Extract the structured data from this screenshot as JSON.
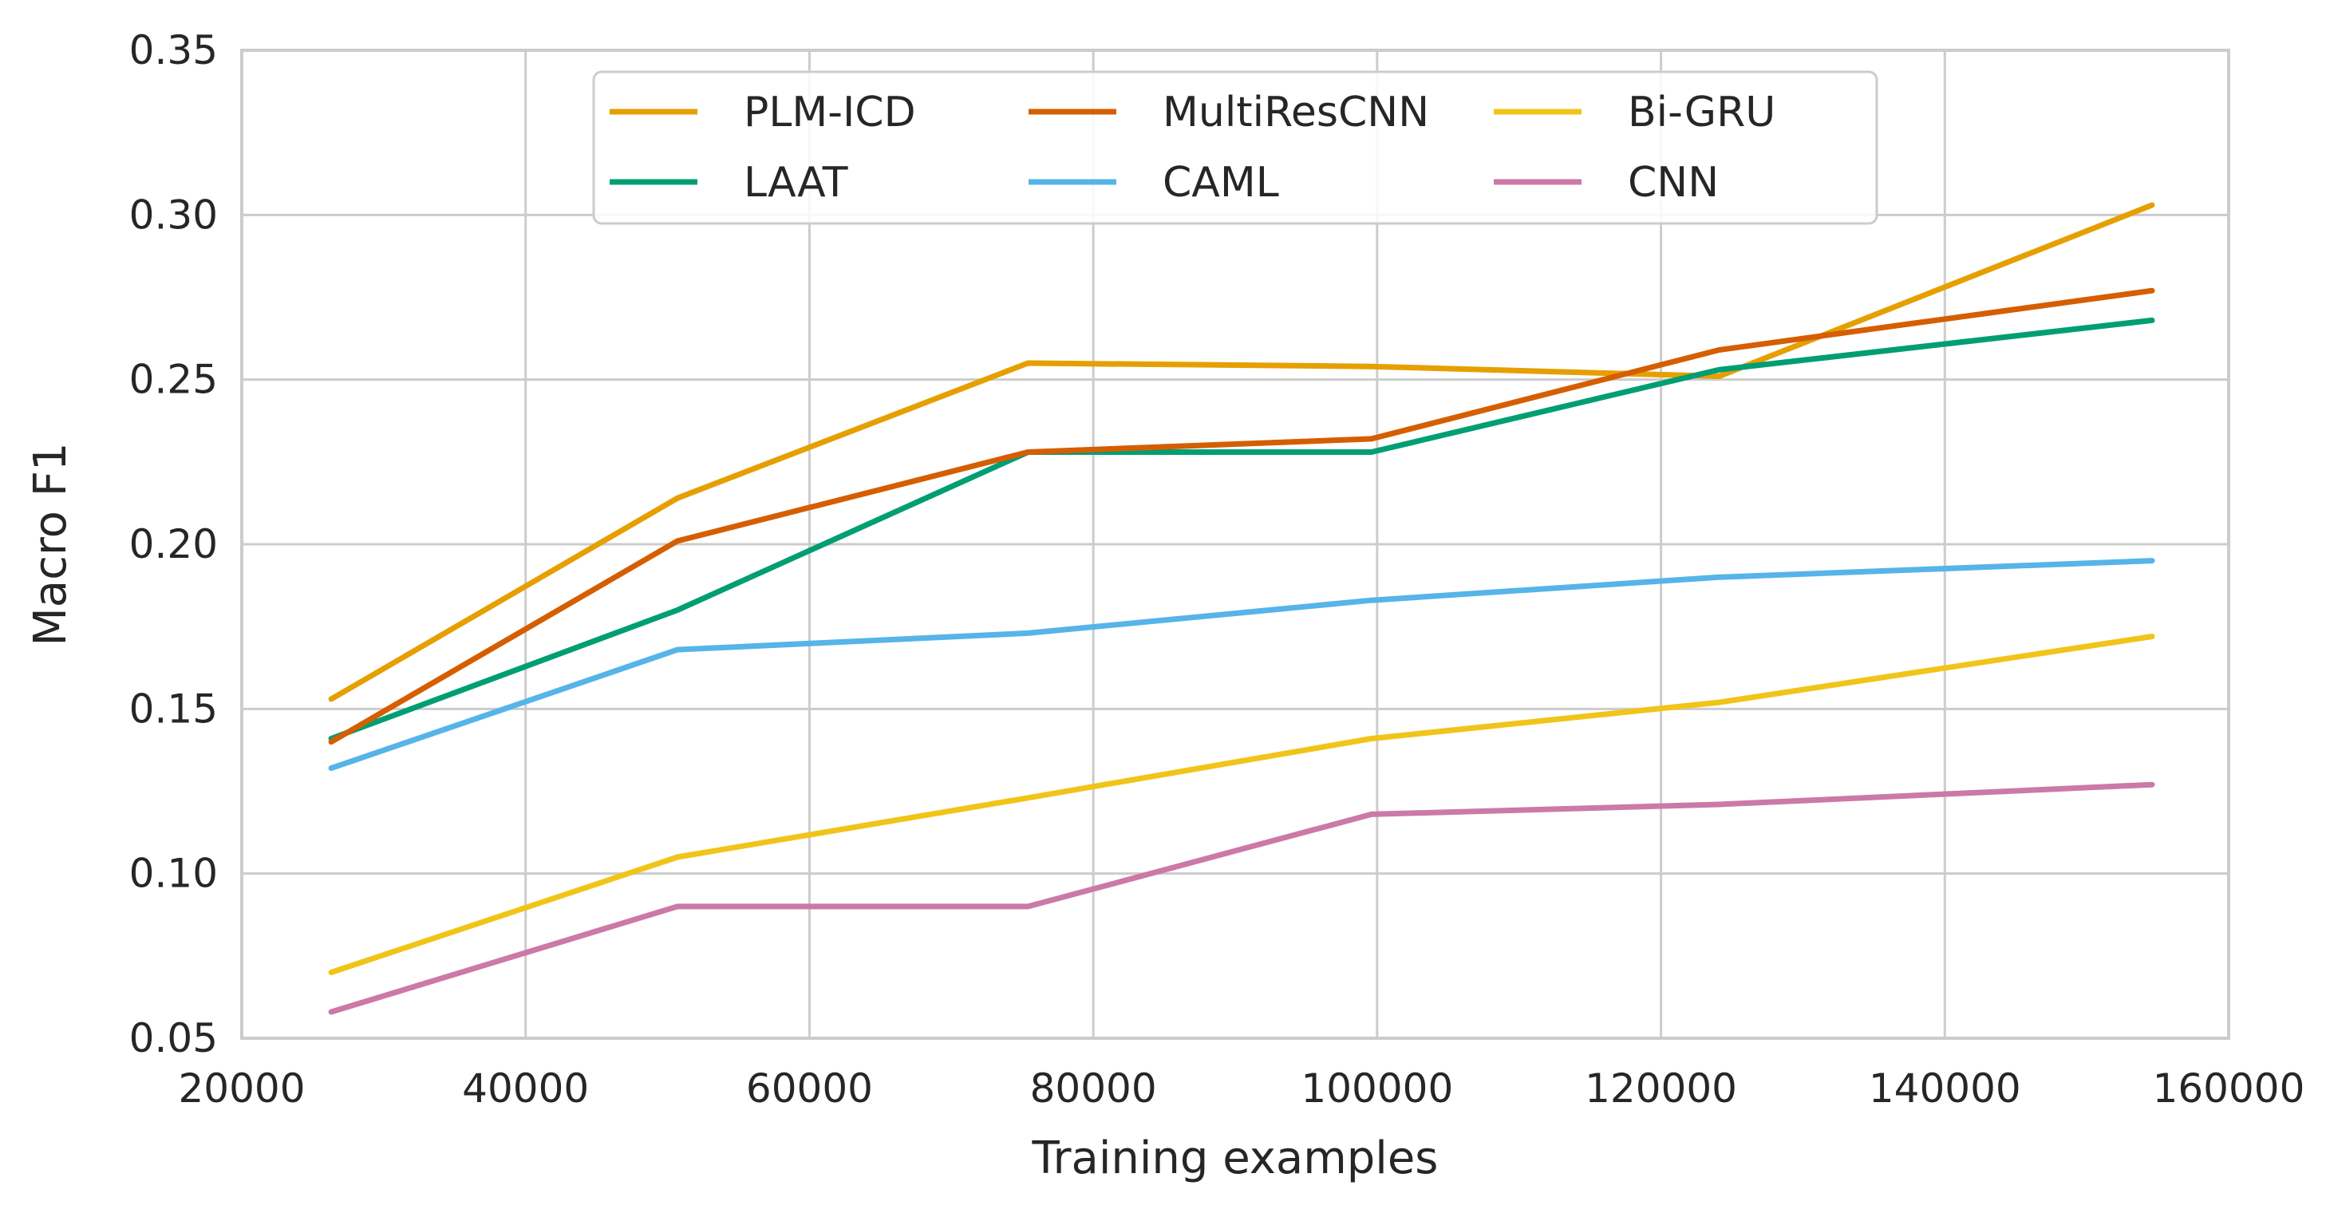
{
  "chart_data": {
    "type": "line",
    "title": "",
    "xlabel": "Training examples",
    "ylabel": "Macro F1",
    "xlim": [
      20000,
      160000
    ],
    "ylim": [
      0.05,
      0.35
    ],
    "xticks": [
      20000,
      40000,
      60000,
      80000,
      100000,
      120000,
      140000,
      160000
    ],
    "xtick_labels": [
      "20000",
      "40000",
      "60000",
      "80000",
      "100000",
      "120000",
      "140000",
      "160000"
    ],
    "yticks": [
      0.05,
      0.1,
      0.15,
      0.2,
      0.25,
      0.3,
      0.35
    ],
    "ytick_labels": [
      "0.05",
      "0.10",
      "0.15",
      "0.20",
      "0.25",
      "0.30",
      "0.35"
    ],
    "grid": true,
    "legend_position": "top-center",
    "legend_columns": 3,
    "x": [
      26300,
      50700,
      75400,
      99600,
      124100,
      154600
    ],
    "series": [
      {
        "name": "PLM-ICD",
        "color": "#E69F00",
        "values": [
          0.153,
          0.214,
          0.255,
          0.254,
          0.251,
          0.303
        ]
      },
      {
        "name": "LAAT",
        "color": "#009E73",
        "values": [
          0.141,
          0.18,
          0.228,
          0.228,
          0.253,
          0.268
        ]
      },
      {
        "name": "MultiResCNN",
        "color": "#D55E00",
        "values": [
          0.14,
          0.201,
          0.228,
          0.232,
          0.259,
          0.277
        ]
      },
      {
        "name": "CAML",
        "color": "#56B4E9",
        "values": [
          0.132,
          0.168,
          0.173,
          0.183,
          0.19,
          0.195
        ]
      },
      {
        "name": "Bi-GRU",
        "color": "#F0C419",
        "values": [
          0.07,
          0.105,
          0.123,
          0.141,
          0.152,
          0.172
        ]
      },
      {
        "name": "CNN",
        "color": "#CC79A7",
        "values": [
          0.058,
          0.09,
          0.09,
          0.118,
          0.121,
          0.127
        ]
      }
    ]
  }
}
